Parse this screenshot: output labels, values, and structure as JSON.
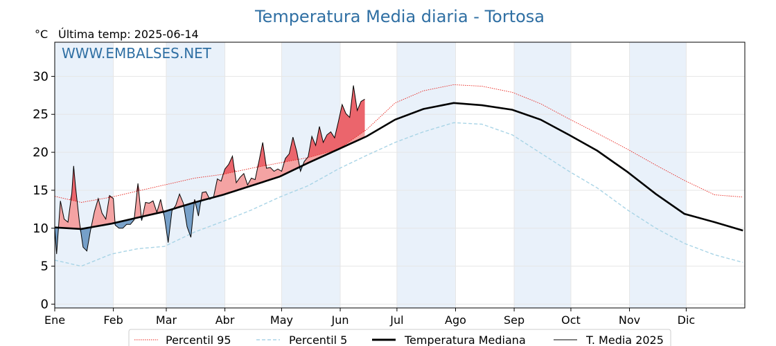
{
  "chart_data": {
    "type": "line",
    "title": "Temperatura Media diaria - Tortosa",
    "unit_label": "°C",
    "subtitle": "Última temp: 2025-06-14",
    "watermark": "WWW.EMBALSES.NET",
    "xlabel": "",
    "ylabel": "",
    "x_ticks": [
      "Ene",
      "Feb",
      "Mar",
      "Abr",
      "May",
      "Jun",
      "Jul",
      "Ago",
      "Sep",
      "Oct",
      "Nov",
      "Dic"
    ],
    "y_ticks": [
      0,
      5,
      10,
      15,
      20,
      25,
      30
    ],
    "ylim": [
      -0.5,
      34.5
    ],
    "xlim": [
      1,
      366
    ],
    "grid": true,
    "legend_position": "bottom-center",
    "colors": {
      "p95": "#e8211a",
      "p5": "#a8d4e6",
      "median": "#000000",
      "year": "#000000",
      "above_fill": "#f4a3a3",
      "below_fill": "#4f84b8",
      "month_band": "#e9f1fa",
      "title": "#2f6fa3"
    },
    "series": [
      {
        "name": "Percentil 95",
        "style": "dotted",
        "x": [
          1,
          15,
          31,
          45,
          59,
          75,
          90,
          105,
          120,
          135,
          151,
          166,
          181,
          196,
          212,
          227,
          243,
          258,
          273,
          288,
          304,
          319,
          334,
          350,
          365
        ],
        "values": [
          14.2,
          13.4,
          14.1,
          14.9,
          15.7,
          16.6,
          17.1,
          17.9,
          18.6,
          19.3,
          20.4,
          23.0,
          26.5,
          28.1,
          28.9,
          28.7,
          27.9,
          26.4,
          24.4,
          22.5,
          20.4,
          18.3,
          16.3,
          14.4,
          14.1
        ]
      },
      {
        "name": "Percentil 5",
        "style": "dashed",
        "x": [
          1,
          15,
          31,
          45,
          59,
          75,
          90,
          105,
          120,
          135,
          151,
          166,
          181,
          196,
          212,
          227,
          243,
          258,
          273,
          288,
          304,
          319,
          334,
          350,
          365
        ],
        "values": [
          5.8,
          5.0,
          6.6,
          7.3,
          7.6,
          9.5,
          10.9,
          12.4,
          14.1,
          15.6,
          17.8,
          19.6,
          21.3,
          22.7,
          23.9,
          23.7,
          22.3,
          19.9,
          17.5,
          15.3,
          12.4,
          10.0,
          8.0,
          6.5,
          5.5
        ]
      },
      {
        "name": "Temperatura Mediana",
        "style": "solid-thick",
        "x": [
          1,
          15,
          31,
          45,
          59,
          75,
          90,
          105,
          120,
          135,
          151,
          166,
          181,
          196,
          212,
          227,
          243,
          258,
          273,
          288,
          304,
          319,
          334,
          350,
          365
        ],
        "values": [
          10.1,
          9.9,
          10.6,
          11.4,
          12.2,
          13.4,
          14.4,
          15.6,
          16.8,
          18.6,
          20.4,
          22.1,
          24.3,
          25.7,
          26.5,
          26.2,
          25.6,
          24.3,
          22.3,
          20.2,
          17.4,
          14.5,
          11.9,
          10.8,
          9.7
        ]
      },
      {
        "name": "T. Media 2025",
        "style": "solid-thin",
        "x": [
          1,
          2,
          4,
          6,
          8,
          10,
          11,
          12,
          14,
          16,
          18,
          20,
          22,
          24,
          26,
          28,
          30,
          32,
          33,
          35,
          37,
          39,
          41,
          43,
          45,
          47,
          49,
          51,
          53,
          55,
          57,
          59,
          61,
          63,
          65,
          67,
          69,
          71,
          73,
          75,
          77,
          79,
          81,
          83,
          85,
          87,
          89,
          91,
          93,
          95,
          97,
          99,
          101,
          103,
          105,
          107,
          109,
          111,
          113,
          115,
          117,
          119,
          121,
          123,
          125,
          127,
          129,
          131,
          133,
          135,
          137,
          139,
          141,
          143,
          145,
          147,
          149,
          151,
          153,
          155,
          157,
          159,
          161,
          163,
          165
        ],
        "values": [
          10.0,
          6.6,
          13.6,
          11.2,
          10.8,
          14.6,
          18.2,
          15.5,
          10.9,
          7.5,
          7.0,
          9.8,
          12.2,
          13.9,
          12.0,
          11.2,
          14.3,
          13.9,
          10.4,
          10.0,
          10.0,
          10.5,
          10.5,
          11.1,
          15.9,
          11.0,
          13.4,
          13.3,
          13.6,
          12.1,
          13.8,
          11.5,
          8.1,
          12.3,
          13.0,
          14.5,
          13.3,
          10.2,
          8.8,
          13.8,
          11.6,
          14.7,
          14.8,
          13.8,
          14.1,
          16.5,
          16.2,
          17.8,
          18.4,
          19.5,
          16.0,
          16.7,
          17.2,
          15.7,
          16.6,
          16.4,
          18.8,
          21.3,
          17.9,
          18.0,
          17.5,
          17.8,
          17.5,
          19.2,
          19.8,
          22.0,
          20.1,
          17.5,
          18.8,
          19.4,
          22.1,
          20.9,
          23.4,
          21.3,
          22.3,
          22.7,
          21.9,
          24.0,
          26.3,
          25.1,
          24.6,
          28.8,
          25.5,
          26.7,
          27.0
        ]
      }
    ],
    "legend": [
      "Percentil 95",
      "Percentil 5",
      "Temperatura Mediana",
      "T. Media 2025"
    ]
  }
}
